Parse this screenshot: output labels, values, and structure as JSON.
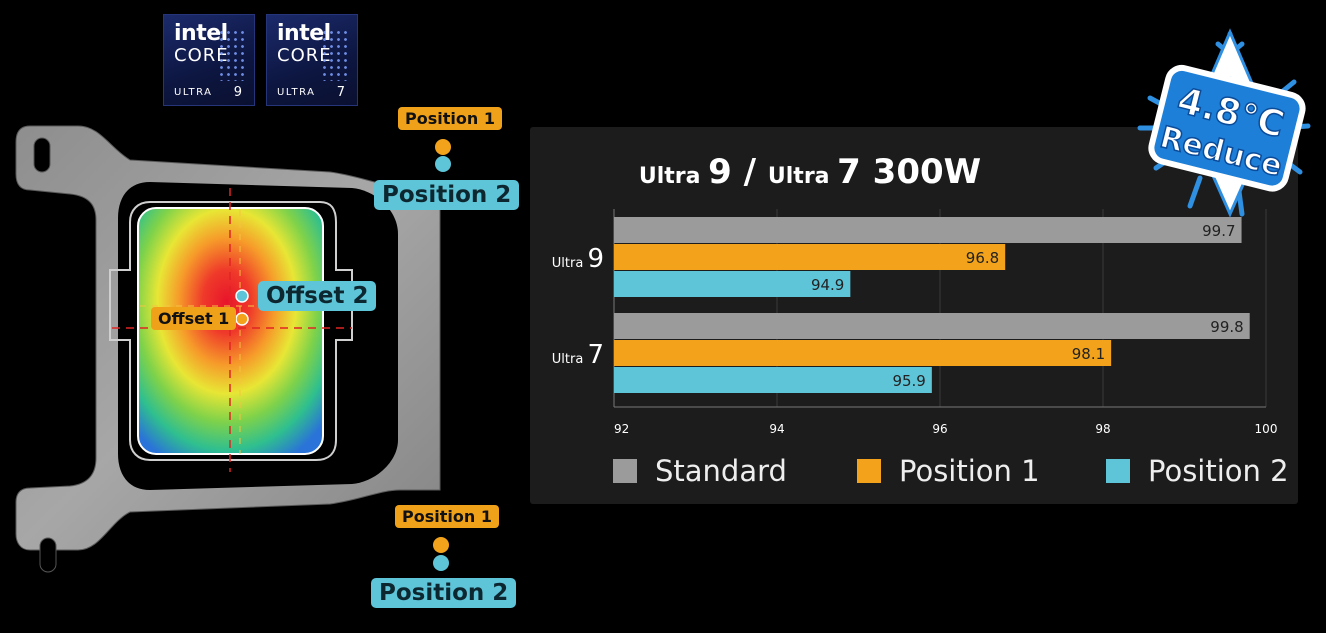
{
  "badges": [
    {
      "brand": "intel",
      "line": "CORE",
      "tier": "ULTRA",
      "number": "9"
    },
    {
      "brand": "intel",
      "line": "CORE",
      "tier": "ULTRA",
      "number": "7"
    }
  ],
  "bracket_callouts": {
    "top_position1": "Position 1",
    "top_position2": "Position 2",
    "bottom_position1": "Position 1",
    "bottom_position2": "Position 2",
    "offset1": "Offset 1",
    "offset2": "Offset 2"
  },
  "reduce_badge": {
    "value": "4.8°C",
    "label": "Reduce"
  },
  "colors": {
    "standard": "#9b9b9b",
    "position1": "#f2a31b",
    "position2": "#5ec4d8",
    "panel": "#1c1c1c"
  },
  "chart_data": {
    "type": "bar",
    "orientation": "horizontal",
    "title_parts": [
      {
        "text": "Ultra ",
        "size": "small"
      },
      {
        "text": "9",
        "size": "big"
      },
      {
        "text": " / ",
        "size": "big"
      },
      {
        "text": "Ultra ",
        "size": "small"
      },
      {
        "text": "7 300W",
        "size": "big"
      }
    ],
    "categories": [
      {
        "prefix": "Ultra",
        "number": "9"
      },
      {
        "prefix": "Ultra",
        "number": "7"
      }
    ],
    "series": [
      {
        "name": "Standard",
        "color": "#9b9b9b",
        "values": [
          99.7,
          99.8
        ],
        "labels": [
          "99.7",
          "99.8"
        ]
      },
      {
        "name": "Position 1",
        "color": "#f2a31b",
        "values": [
          96.8,
          98.1
        ],
        "labels": [
          "96.8",
          "98.1"
        ]
      },
      {
        "name": "Position 2",
        "color": "#5ec4d8",
        "values": [
          94.9,
          95.9
        ],
        "labels": [
          "94.9",
          "95.9"
        ]
      }
    ],
    "xlim": [
      92,
      100
    ],
    "xticks": [
      "92",
      "94",
      "96",
      "98",
      "100"
    ],
    "grid": true,
    "legend": "bottom"
  }
}
